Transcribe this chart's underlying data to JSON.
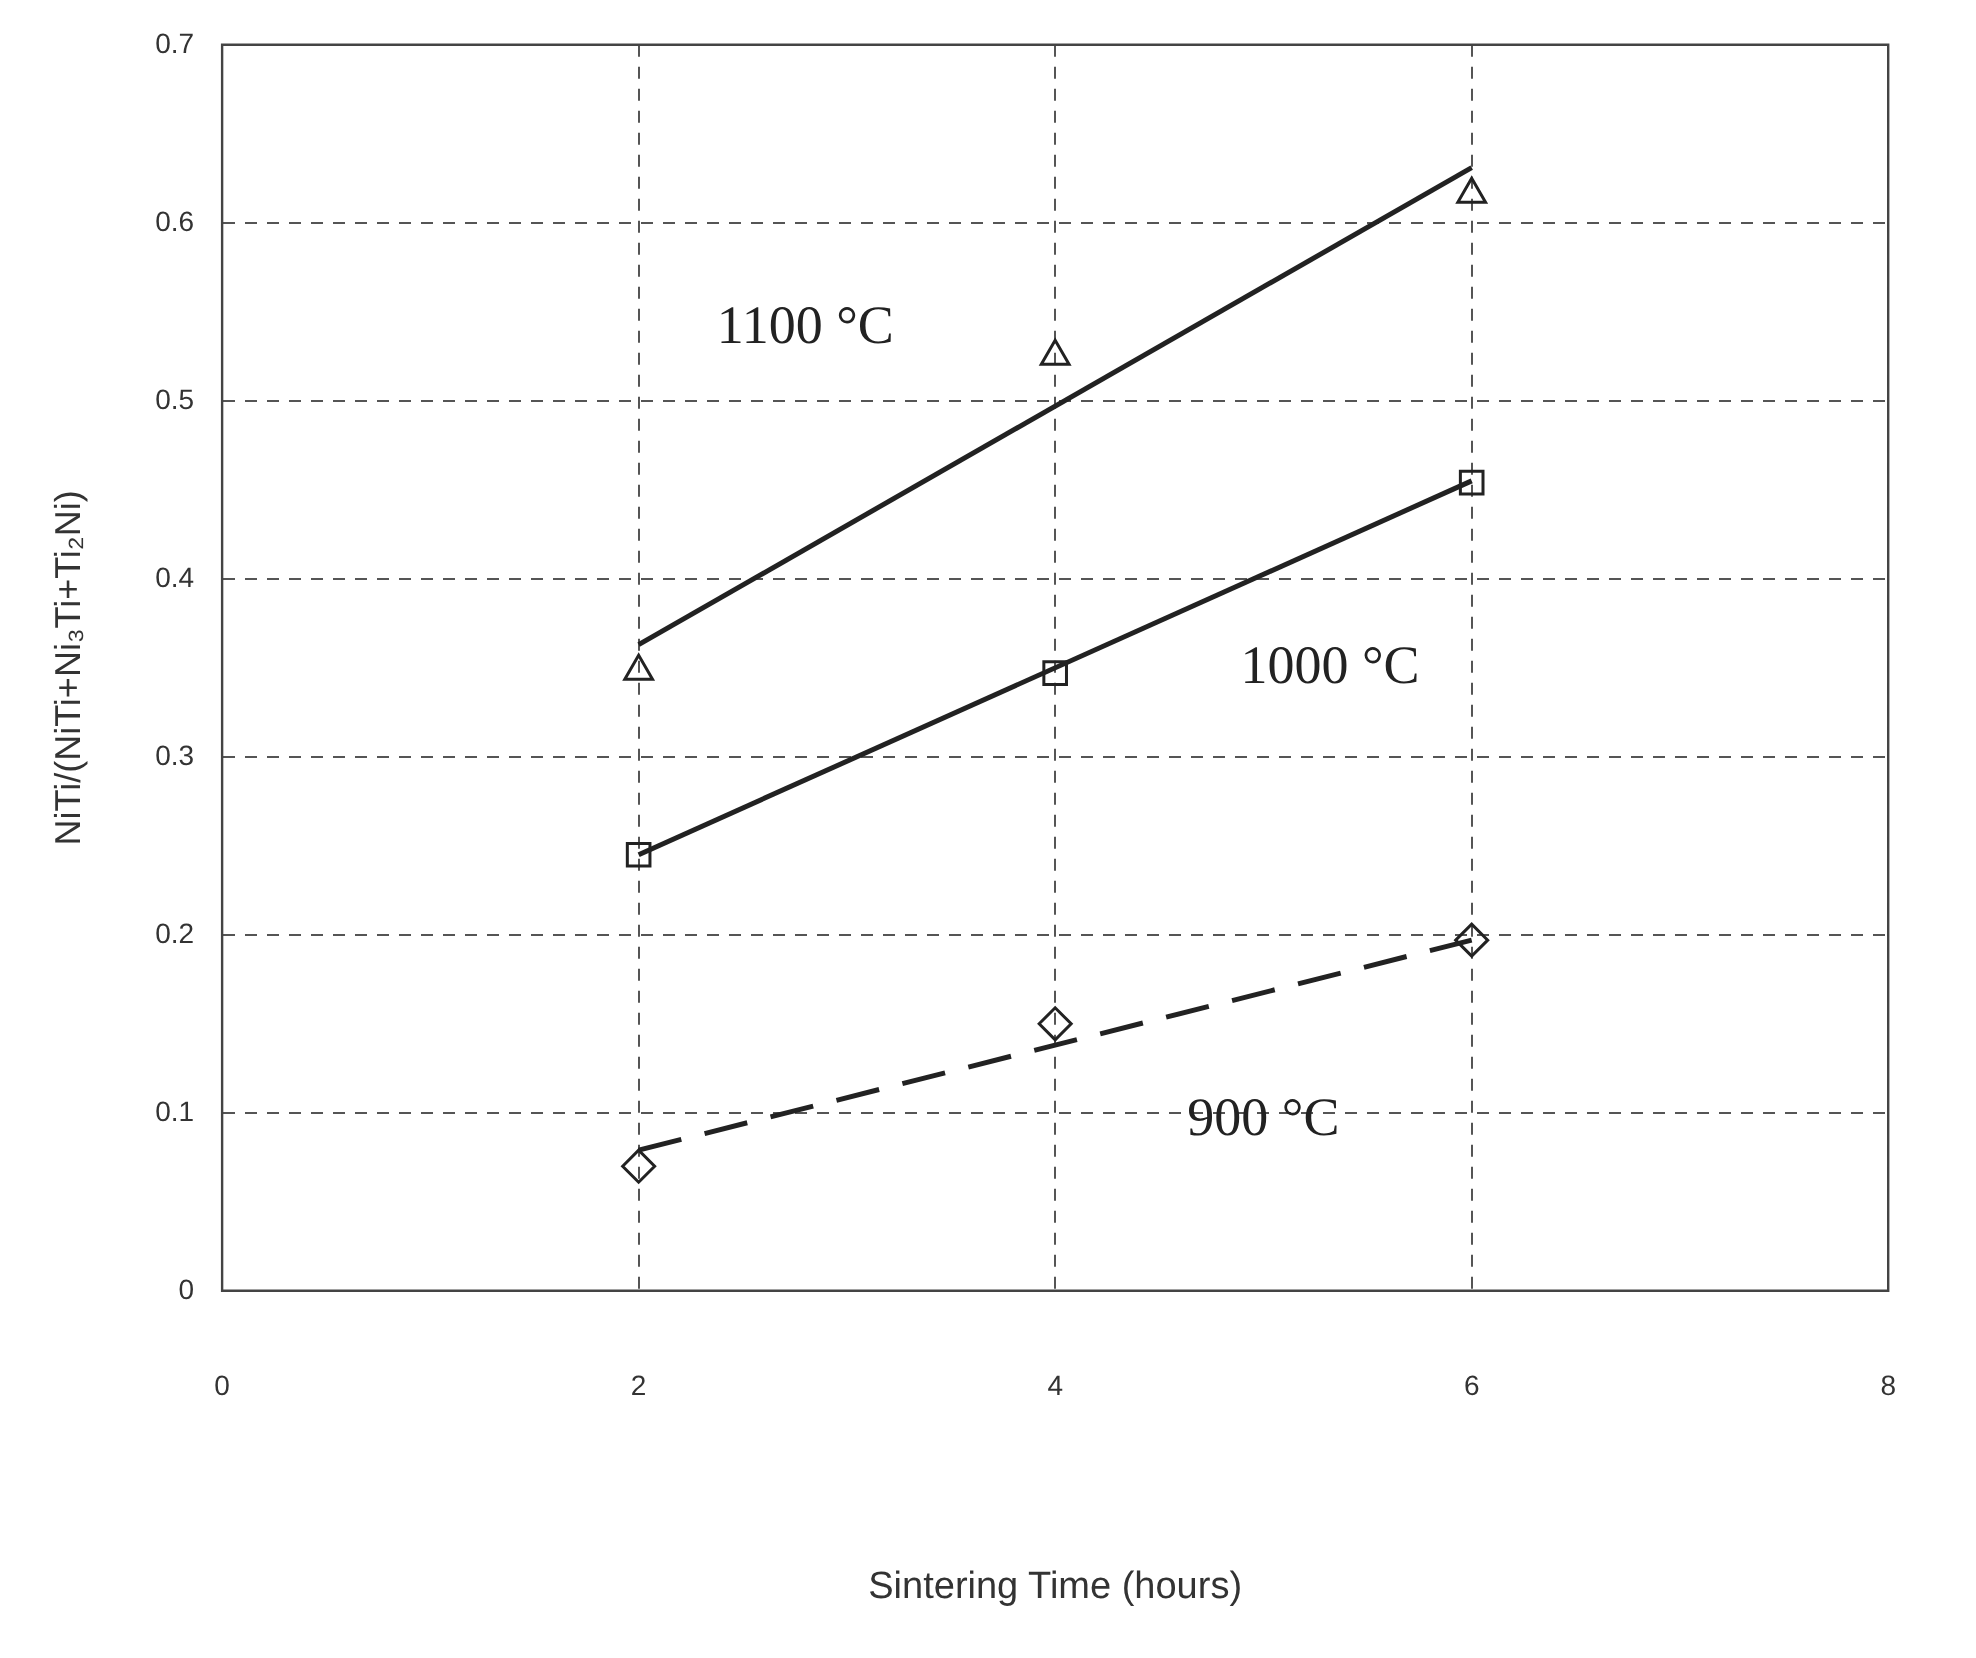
{
  "chart_data": {
    "type": "line",
    "xlabel": "Sintering Time (hours)",
    "ylabel": "NiTi/(NiTi+Ni₃Ti+Ti₂Ni)",
    "xlim": [
      0,
      8
    ],
    "xticks": [
      0,
      2,
      4,
      6,
      8
    ],
    "ylim": [
      0,
      0.7
    ],
    "yticks": [
      0,
      0.1,
      0.2,
      0.3,
      0.4,
      0.5,
      0.6,
      0.7
    ],
    "grid": true,
    "legend": false,
    "series": [
      {
        "type": "scatter",
        "marker": "triangle",
        "color": "#222222",
        "x": [
          2,
          4,
          6
        ],
        "values": [
          0.348,
          0.525,
          0.616
        ]
      },
      {
        "type": "line",
        "name": "1100 °C",
        "marker": "none",
        "line_style": "solid",
        "color": "#222222",
        "x": [
          2,
          6
        ],
        "values": [
          0.363,
          0.631
        ]
      },
      {
        "type": "scatter",
        "marker": "square",
        "color": "#222222",
        "x": [
          2,
          4,
          6
        ],
        "values": [
          0.245,
          0.347,
          0.454
        ]
      },
      {
        "type": "line",
        "name": "1000 °C",
        "marker": "none",
        "line_style": "solid",
        "color": "#222222",
        "x": [
          2,
          6
        ],
        "values": [
          0.245,
          0.455
        ]
      },
      {
        "type": "scatter",
        "marker": "diamond",
        "color": "#222222",
        "x": [
          2,
          4,
          6
        ],
        "values": [
          0.07,
          0.15,
          0.197
        ]
      },
      {
        "type": "line",
        "name": "900 °C",
        "marker": "none",
        "line_style": "dashed",
        "color": "#222222",
        "x": [
          2,
          6
        ],
        "values": [
          0.079,
          0.197
        ]
      }
    ]
  }
}
